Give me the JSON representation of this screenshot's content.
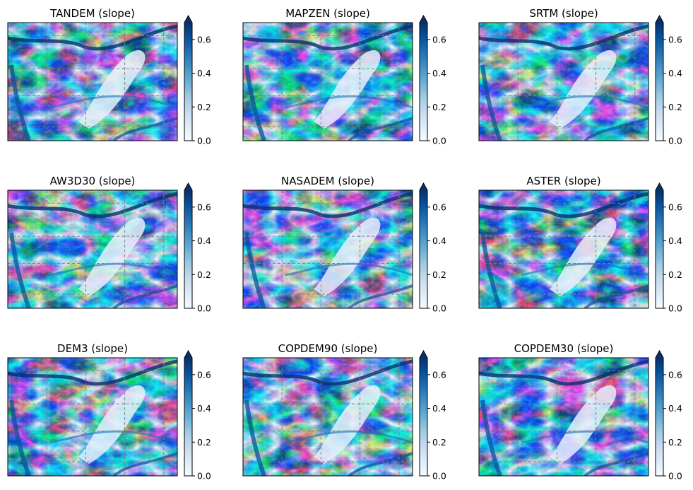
{
  "figure": {
    "colormap": "Blues",
    "colormap_stops": [
      "#f7fbff",
      "#deebf7",
      "#c6dbef",
      "#9ecae1",
      "#6baed6",
      "#4292c6",
      "#2171b5",
      "#08519c",
      "#08306b"
    ],
    "gridline_color": "#808080",
    "frame_color": "#000000"
  },
  "chart_data": [
    {
      "type": "heatmap",
      "title": "TANDEM (slope)",
      "variable": "slope",
      "colorbar": {
        "min": 0.0,
        "max": 0.7,
        "extend": "max",
        "ticks": [
          0.0,
          0.2,
          0.4,
          0.6
        ],
        "tick_labels": [
          "0.0",
          "0.2",
          "0.4",
          "0.6"
        ]
      },
      "grid": true
    },
    {
      "type": "heatmap",
      "title": "MAPZEN (slope)",
      "variable": "slope",
      "colorbar": {
        "min": 0.0,
        "max": 0.7,
        "extend": "max",
        "ticks": [
          0.0,
          0.2,
          0.4,
          0.6
        ],
        "tick_labels": [
          "0.0",
          "0.2",
          "0.4",
          "0.6"
        ]
      },
      "grid": true
    },
    {
      "type": "heatmap",
      "title": "SRTM (slope)",
      "variable": "slope",
      "colorbar": {
        "min": 0.0,
        "max": 0.7,
        "extend": "max",
        "ticks": [
          0.0,
          0.2,
          0.4,
          0.6
        ],
        "tick_labels": [
          "0.0",
          "0.2",
          "0.4",
          "0.6"
        ]
      },
      "grid": true
    },
    {
      "type": "heatmap",
      "title": "AW3D30 (slope)",
      "variable": "slope",
      "colorbar": {
        "min": 0.0,
        "max": 0.7,
        "extend": "max",
        "ticks": [
          0.0,
          0.2,
          0.4,
          0.6
        ],
        "tick_labels": [
          "0.0",
          "0.2",
          "0.4",
          "0.6"
        ]
      },
      "grid": true
    },
    {
      "type": "heatmap",
      "title": "NASADEM (slope)",
      "variable": "slope",
      "colorbar": {
        "min": 0.0,
        "max": 0.7,
        "extend": "max",
        "ticks": [
          0.0,
          0.2,
          0.4,
          0.6
        ],
        "tick_labels": [
          "0.0",
          "0.2",
          "0.4",
          "0.6"
        ]
      },
      "grid": true
    },
    {
      "type": "heatmap",
      "title": "ASTER (slope)",
      "variable": "slope",
      "colorbar": {
        "min": 0.0,
        "max": 0.7,
        "extend": "max",
        "ticks": [
          0.0,
          0.2,
          0.4,
          0.6
        ],
        "tick_labels": [
          "0.0",
          "0.2",
          "0.4",
          "0.6"
        ]
      },
      "grid": true
    },
    {
      "type": "heatmap",
      "title": "DEM3 (slope)",
      "variable": "slope",
      "colorbar": {
        "min": 0.0,
        "max": 0.7,
        "extend": "max",
        "ticks": [
          0.0,
          0.2,
          0.4,
          0.6
        ],
        "tick_labels": [
          "0.0",
          "0.2",
          "0.4",
          "0.6"
        ]
      },
      "grid": true
    },
    {
      "type": "heatmap",
      "title": "COPDEM90 (slope)",
      "variable": "slope",
      "colorbar": {
        "min": 0.0,
        "max": 0.7,
        "extend": "max",
        "ticks": [
          0.0,
          0.2,
          0.4,
          0.6
        ],
        "tick_labels": [
          "0.0",
          "0.2",
          "0.4",
          "0.6"
        ]
      },
      "grid": true
    },
    {
      "type": "heatmap",
      "title": "COPDEM30 (slope)",
      "variable": "slope",
      "colorbar": {
        "min": 0.0,
        "max": 0.7,
        "extend": "max",
        "ticks": [
          0.0,
          0.2,
          0.4,
          0.6
        ],
        "tick_labels": [
          "0.0",
          "0.2",
          "0.4",
          "0.6"
        ]
      },
      "grid": true
    }
  ]
}
